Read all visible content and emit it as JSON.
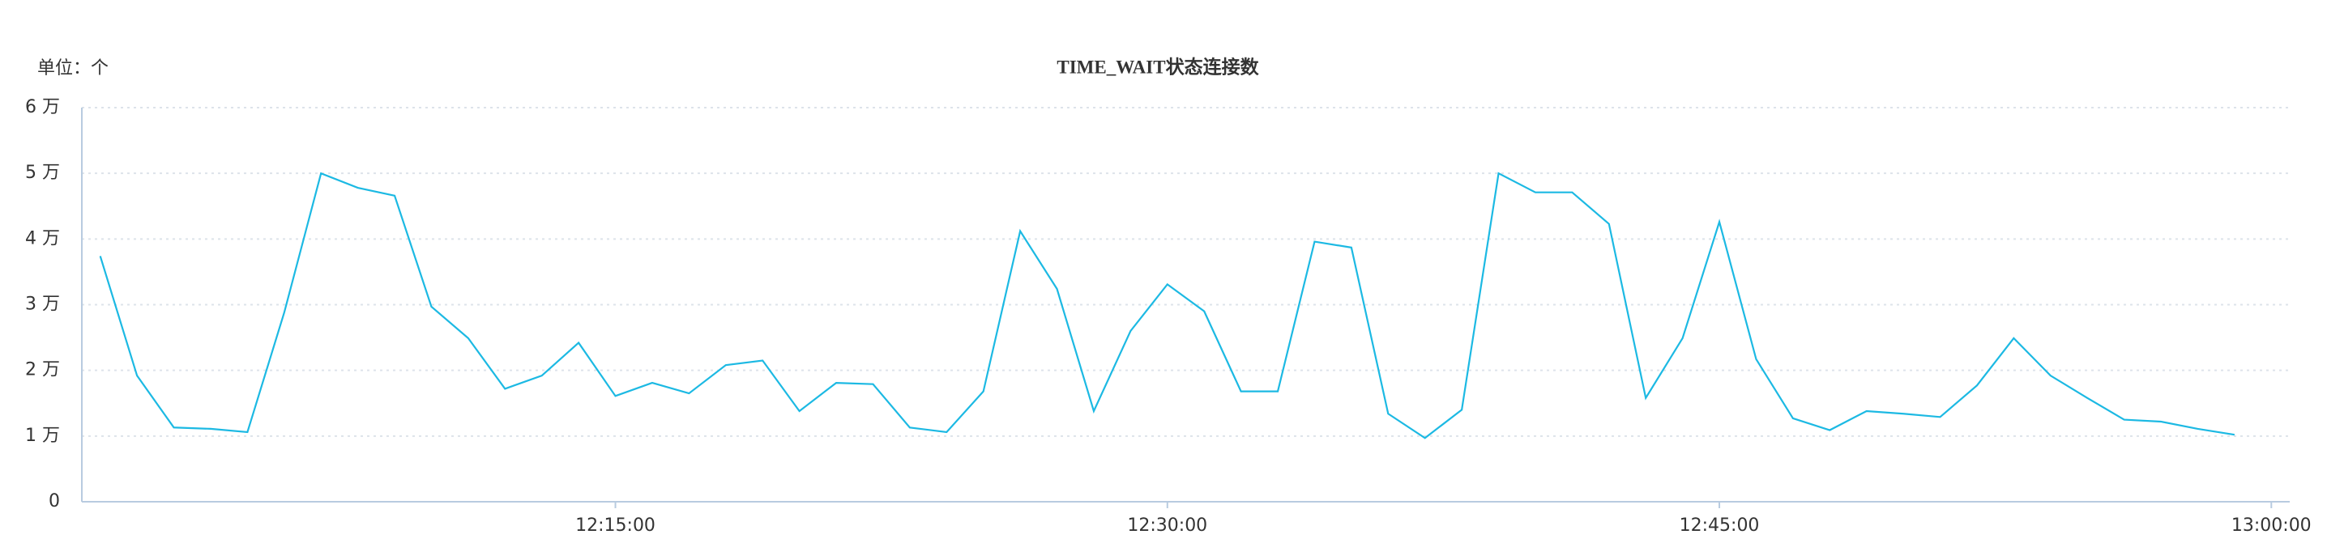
{
  "chart_data": {
    "type": "line",
    "title": "TIME_WAIT状态连接数",
    "unit_label": "单位：个",
    "x": [
      "12:01:00",
      "12:02:00",
      "12:03:00",
      "12:04:00",
      "12:05:00",
      "12:06:00",
      "12:07:00",
      "12:08:00",
      "12:09:00",
      "12:10:00",
      "12:11:00",
      "12:12:00",
      "12:13:00",
      "12:14:00",
      "12:15:00",
      "12:16:00",
      "12:17:00",
      "12:18:00",
      "12:19:00",
      "12:20:00",
      "12:21:00",
      "12:22:00",
      "12:23:00",
      "12:24:00",
      "12:25:00",
      "12:26:00",
      "12:27:00",
      "12:28:00",
      "12:29:00",
      "12:30:00",
      "12:31:00",
      "12:32:00",
      "12:33:00",
      "12:34:00",
      "12:35:00",
      "12:36:00",
      "12:37:00",
      "12:38:00",
      "12:39:00",
      "12:40:00",
      "12:41:00",
      "12:42:00",
      "12:43:00",
      "12:44:00",
      "12:45:00",
      "12:46:00",
      "12:47:00",
      "12:48:00",
      "12:49:00",
      "12:50:00",
      "12:51:00",
      "12:52:00",
      "12:53:00",
      "12:54:00",
      "12:55:00",
      "12:56:00",
      "12:57:00",
      "12:58:00",
      "12:59:00"
    ],
    "series": [
      {
        "name": "TIME_WAIT",
        "color": "#1cb9e3",
        "values": [
          37400,
          19200,
          11300,
          11100,
          10600,
          28800,
          50000,
          47800,
          46600,
          29700,
          24900,
          17200,
          19200,
          24200,
          16100,
          18100,
          16500,
          20800,
          21500,
          13800,
          18100,
          17900,
          11300,
          10600,
          16800,
          41200,
          32400,
          13800,
          26000,
          33100,
          29000,
          16800,
          16800,
          39600,
          38700,
          13400,
          9700,
          14000,
          50000,
          47100,
          47100,
          42300,
          15800,
          24900,
          42600,
          21700,
          12700,
          10900,
          13800,
          13400,
          12900,
          17700,
          24900,
          19200,
          15800,
          12500,
          12200,
          11100,
          10200
        ]
      }
    ],
    "xlim": [
      "12:00:30",
      "13:00:30"
    ],
    "xticks": [
      "12:15:00",
      "12:30:00",
      "12:45:00",
      "13:00:00"
    ],
    "ylim": [
      0,
      60000
    ],
    "yticks": [
      0,
      {
        "value": 10000,
        "label": "1 万"
      },
      {
        "value": 20000,
        "label": "2 万"
      },
      {
        "value": 30000,
        "label": "3 万"
      },
      {
        "value": 40000,
        "label": "4 万"
      },
      {
        "value": 50000,
        "label": "5 万"
      },
      {
        "value": 60000,
        "label": "6 万"
      }
    ],
    "grid": true
  }
}
